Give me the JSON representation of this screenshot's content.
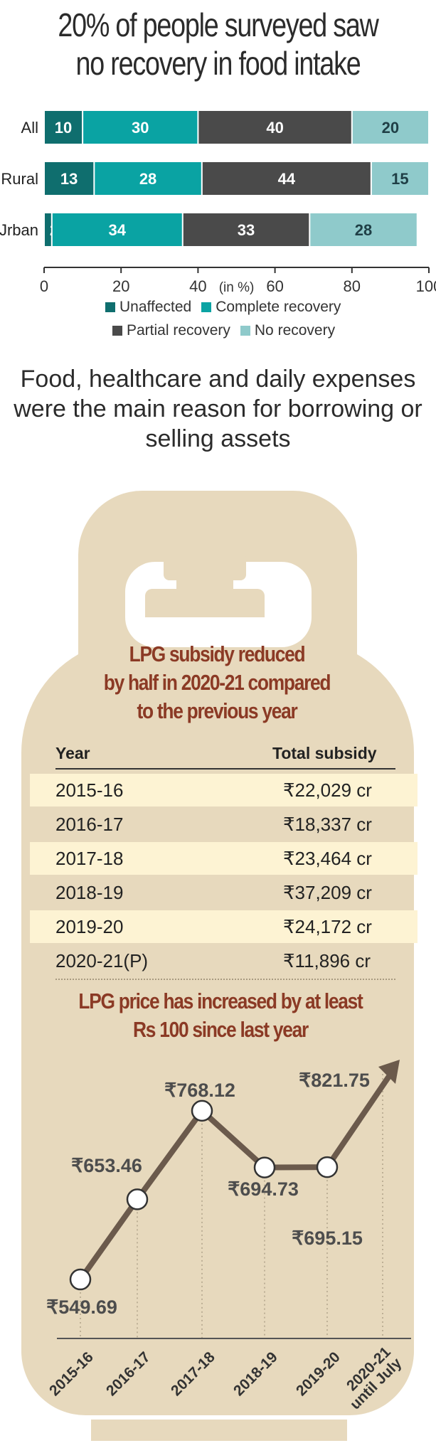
{
  "title": "20% of people surveyed saw\nno recovery in food intake",
  "subtitle": "Food, healthcare and daily expenses were the main reason for borrowing or selling assets",
  "chart_data": [
    {
      "type": "bar",
      "orientation": "horizontal",
      "stacked": true,
      "categories": [
        "All",
        "Rural",
        "Urban"
      ],
      "category_labels": [
        "All",
        "Rural",
        "Jrban"
      ],
      "series": [
        {
          "name": "Unaffected",
          "values": [
            10,
            13,
            2
          ],
          "color": "#0f6e6e"
        },
        {
          "name": "Complete recovery",
          "values": [
            30,
            28,
            34
          ],
          "color": "#0aa3a3"
        },
        {
          "name": "Partial recovery",
          "values": [
            40,
            44,
            33
          ],
          "color": "#4a4a4a"
        },
        {
          "name": "No recovery",
          "values": [
            20,
            15,
            28
          ],
          "color": "#8fcacb"
        }
      ],
      "xlim": [
        0,
        100
      ],
      "xticks": [
        0,
        20,
        40,
        60,
        80,
        100
      ],
      "unit_label": "(in %)",
      "legend": [
        [
          "Unaffected",
          "Complete recovery"
        ],
        [
          "Partial recovery",
          "No recovery"
        ]
      ]
    },
    {
      "type": "table",
      "title": "LPG subsidy reduced\nby half in 2020-21 compared\nto the previous year",
      "columns": [
        "Year",
        "Total subsidy"
      ],
      "rows": [
        [
          "2015-16",
          "₹22,029 cr"
        ],
        [
          "2016-17",
          "₹18,337 cr"
        ],
        [
          "2017-18",
          "₹23,464 cr"
        ],
        [
          "2018-19",
          "₹37,209 cr"
        ],
        [
          "2019-20",
          "₹24,172 cr"
        ],
        [
          "2020-21(P)",
          "₹11,896 cr"
        ]
      ]
    },
    {
      "type": "line",
      "title": "LPG price has increased by at least\nRs 100 since last year",
      "x": [
        "2015-16",
        "2016-17",
        "2017-18",
        "2018-19",
        "2019-20",
        "2020-21\nuntil July"
      ],
      "values": [
        549.69,
        653.46,
        768.12,
        694.73,
        695.15,
        821.75
      ],
      "labels": [
        "₹549.69",
        "₹653.46",
        "₹768.12",
        "₹694.73",
        "₹695.15",
        "₹821.75"
      ],
      "ylim": [
        500,
        850
      ],
      "line_color": "#6b5a4c",
      "last_point_arrow": true
    }
  ],
  "colors": {
    "cylinder": "#e7d9bd",
    "row_highlight": "#fdf3d3",
    "accent_title": "#8b3a25"
  }
}
